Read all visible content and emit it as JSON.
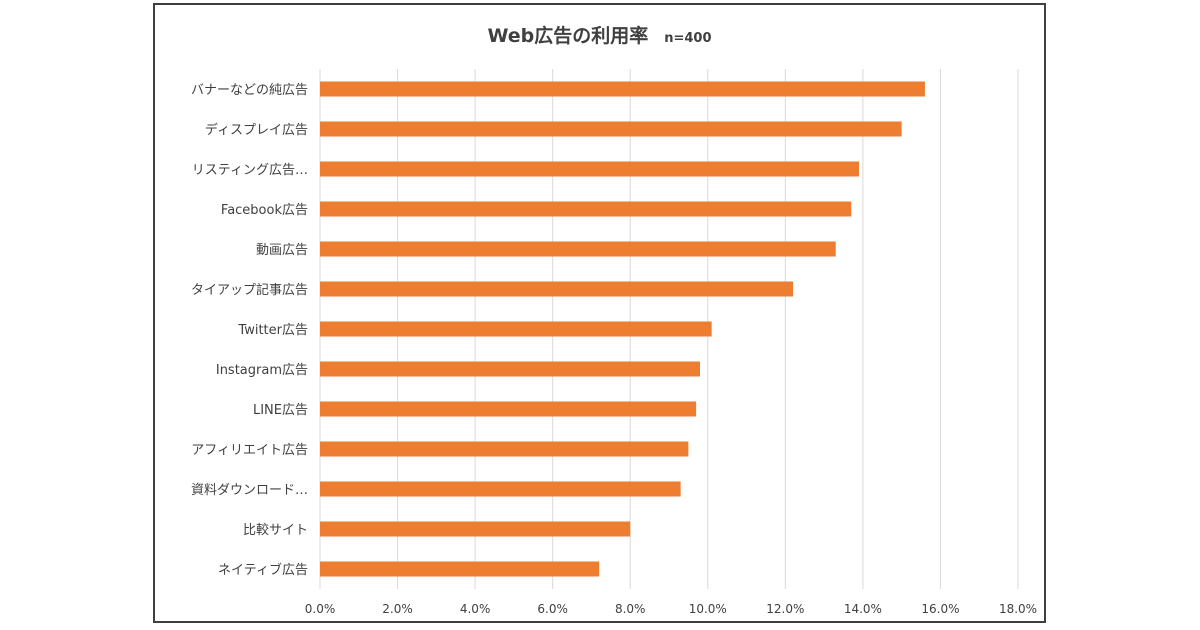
{
  "chart_data": {
    "type": "bar",
    "orientation": "horizontal",
    "title": "Web広告の利用率",
    "subtitle": "n=400",
    "categories": [
      "バナーなどの純広告",
      "ディスプレイ広告",
      "リスティング広告…",
      "Facebook広告",
      "動画広告",
      "タイアップ記事広告",
      "Twitter広告",
      "Instagram広告",
      "LINE広告",
      "アフィリエイト広告",
      "資料ダウンロード…",
      "比較サイト",
      "ネイティブ広告"
    ],
    "values": [
      15.6,
      15.0,
      13.9,
      13.7,
      13.3,
      12.2,
      10.1,
      9.8,
      9.7,
      9.5,
      9.3,
      8.0,
      7.2
    ],
    "xlim": [
      0,
      18
    ],
    "x_ticks": [
      "0.0%",
      "2.0%",
      "4.0%",
      "6.0%",
      "8.0%",
      "10.0%",
      "12.0%",
      "14.0%",
      "16.0%",
      "18.0%"
    ],
    "grid": true,
    "bar_color": "#ed7d31",
    "grid_color": "#d9d9d9"
  }
}
